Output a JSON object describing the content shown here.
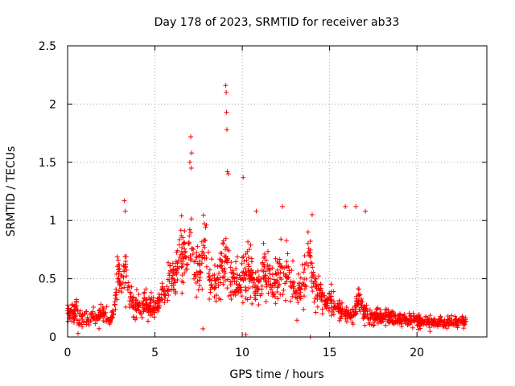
{
  "chart_data": {
    "type": "scatter",
    "title": "Day 178 of 2023, SRMTID for receiver ab33",
    "xlabel": "GPS time / hours",
    "ylabel": "SRMTID / TECUs",
    "xlim": [
      0,
      24
    ],
    "ylim": [
      0,
      2.5
    ],
    "xticks": [
      0,
      5,
      10,
      15,
      20
    ],
    "xtick_labels": [
      "0",
      "5",
      "10",
      "15",
      "20"
    ],
    "yticks": [
      0,
      0.5,
      1,
      1.5,
      2,
      2.5
    ],
    "ytick_labels": [
      "0",
      "0.5",
      "1",
      "1.5",
      "2",
      "2.5"
    ],
    "grid": true,
    "marker": "+",
    "series": [
      {
        "name": "SRMTID",
        "color": "#ff0000",
        "x_step_hours": 0.1,
        "x_start_hours": 0.0,
        "comment_profile": "median-like level sampled every 0.1 h; scatter generated around it",
        "profile": [
          0.22,
          0.2,
          0.18,
          0.19,
          0.22,
          0.26,
          0.2,
          0.17,
          0.16,
          0.18,
          0.2,
          0.19,
          0.17,
          0.16,
          0.18,
          0.17,
          0.16,
          0.15,
          0.18,
          0.2,
          0.22,
          0.18,
          0.16,
          0.15,
          0.14,
          0.16,
          0.2,
          0.28,
          0.45,
          0.55,
          0.48,
          0.42,
          0.48,
          0.6,
          0.55,
          0.42,
          0.35,
          0.3,
          0.28,
          0.27,
          0.28,
          0.26,
          0.25,
          0.27,
          0.3,
          0.28,
          0.27,
          0.26,
          0.25,
          0.24,
          0.22,
          0.24,
          0.28,
          0.32,
          0.35,
          0.34,
          0.33,
          0.4,
          0.5,
          0.55,
          0.52,
          0.55,
          0.6,
          0.65,
          0.7,
          0.75,
          0.7,
          0.72,
          0.78,
          0.85,
          0.8,
          0.7,
          0.65,
          0.6,
          0.55,
          0.58,
          0.62,
          0.65,
          0.8,
          0.75,
          0.65,
          0.55,
          0.5,
          0.48,
          0.42,
          0.4,
          0.45,
          0.5,
          0.55,
          0.6,
          0.65,
          0.7,
          0.62,
          0.55,
          0.52,
          0.48,
          0.46,
          0.44,
          0.42,
          0.45,
          0.48,
          0.52,
          0.55,
          0.58,
          0.56,
          0.5,
          0.45,
          0.4,
          0.42,
          0.45,
          0.5,
          0.55,
          0.6,
          0.58,
          0.55,
          0.5,
          0.45,
          0.4,
          0.42,
          0.48,
          0.5,
          0.55,
          0.6,
          0.62,
          0.58,
          0.55,
          0.52,
          0.5,
          0.48,
          0.45,
          0.42,
          0.4,
          0.38,
          0.42,
          0.48,
          0.55,
          0.62,
          0.7,
          0.72,
          0.65,
          0.55,
          0.45,
          0.4,
          0.38,
          0.36,
          0.35,
          0.33,
          0.32,
          0.3,
          0.3,
          0.32,
          0.3,
          0.28,
          0.27,
          0.26,
          0.25,
          0.24,
          0.22,
          0.22,
          0.21,
          0.2,
          0.19,
          0.18,
          0.18,
          0.19,
          0.22,
          0.3,
          0.32,
          0.28,
          0.22,
          0.2,
          0.19,
          0.18,
          0.19,
          0.18,
          0.17,
          0.18,
          0.19,
          0.18,
          0.17,
          0.16,
          0.17,
          0.18,
          0.17,
          0.16,
          0.16,
          0.17,
          0.16,
          0.15,
          0.16,
          0.15,
          0.15,
          0.16,
          0.15,
          0.14,
          0.15,
          0.15,
          0.14,
          0.14,
          0.15,
          0.14,
          0.14,
          0.14,
          0.13,
          0.13,
          0.14,
          0.14,
          0.13,
          0.13,
          0.13,
          0.13,
          0.13,
          0.13,
          0.13,
          0.13,
          0.13,
          0.13,
          0.13,
          0.13,
          0.13,
          0.13,
          0.13,
          0.13,
          0.13
        ],
        "spread_factor": 0.55,
        "x_end_hours": 22.8,
        "outliers": [
          {
            "x": 9.05,
            "y": 2.16
          },
          {
            "x": 9.08,
            "y": 2.1
          },
          {
            "x": 9.1,
            "y": 1.93
          },
          {
            "x": 9.12,
            "y": 1.78
          },
          {
            "x": 9.15,
            "y": 1.42
          },
          {
            "x": 9.2,
            "y": 1.4
          },
          {
            "x": 7.05,
            "y": 1.72
          },
          {
            "x": 7.1,
            "y": 1.58
          },
          {
            "x": 7.0,
            "y": 1.5
          },
          {
            "x": 7.08,
            "y": 1.45
          },
          {
            "x": 3.25,
            "y": 1.17
          },
          {
            "x": 3.3,
            "y": 1.08
          },
          {
            "x": 10.05,
            "y": 1.37
          },
          {
            "x": 10.8,
            "y": 1.08
          },
          {
            "x": 12.3,
            "y": 1.12
          },
          {
            "x": 16.5,
            "y": 1.12
          },
          {
            "x": 17.05,
            "y": 1.08
          },
          {
            "x": 13.9,
            "y": 0.0
          },
          {
            "x": 10.2,
            "y": 0.02
          },
          {
            "x": 0.6,
            "y": 0.03
          },
          {
            "x": 7.75,
            "y": 0.07
          },
          {
            "x": 15.9,
            "y": 1.12
          },
          {
            "x": 14.0,
            "y": 1.05
          }
        ]
      }
    ]
  }
}
